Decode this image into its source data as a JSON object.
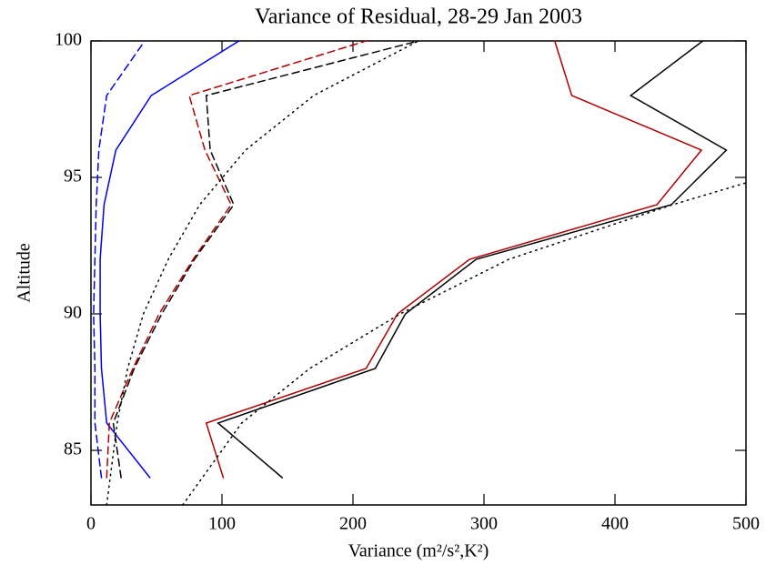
{
  "chart_data": {
    "type": "line",
    "title": "Variance of Residual, 28-29 Jan 2003",
    "xlabel": "Variance (m²/s²,K²)",
    "ylabel": "Altitude",
    "xlim": [
      0,
      500
    ],
    "xticks": [
      0,
      100,
      200,
      300,
      400,
      500
    ],
    "ylim": [
      83,
      100
    ],
    "yticks": [
      85,
      90,
      95,
      100
    ],
    "series": [
      {
        "color": "#0000ee",
        "dash": "none",
        "x": [
          45,
          12,
          8,
          7,
          7,
          10,
          19,
          46,
          113
        ],
        "y": [
          84,
          86,
          88,
          90,
          92,
          94,
          96,
          98,
          100
        ]
      },
      {
        "color": "#0000ee",
        "dash": "8,5",
        "x": [
          8,
          3,
          3,
          2,
          3,
          4,
          6,
          12,
          41
        ],
        "y": [
          84,
          86,
          88,
          90,
          92,
          94,
          96,
          98,
          100
        ]
      },
      {
        "color": "#000000",
        "dash": "none",
        "x": [
          146,
          97,
          217,
          240,
          294,
          443,
          485,
          412,
          467
        ],
        "y": [
          84,
          86,
          88,
          90,
          92,
          94,
          96,
          98,
          100
        ]
      },
      {
        "color": "#b00000",
        "dash": "none",
        "x": [
          101,
          88,
          210,
          234,
          289,
          432,
          466,
          367,
          354
        ],
        "y": [
          84,
          86,
          88,
          90,
          92,
          94,
          96,
          98,
          100
        ]
      },
      {
        "color": "#000000",
        "dash": "8,5",
        "x": [
          23,
          17,
          33,
          54,
          79,
          109,
          91,
          88,
          250
        ],
        "y": [
          84,
          86,
          88,
          90,
          92,
          94,
          96,
          98,
          100
        ]
      },
      {
        "color": "#b00000",
        "dash": "8,5",
        "x": [
          12,
          14,
          32,
          52,
          78,
          107,
          87,
          75,
          210
        ],
        "y": [
          84,
          86,
          88,
          90,
          92,
          94,
          96,
          98,
          100
        ]
      },
      {
        "color": "#000000",
        "dash": "1.5,5",
        "x": [
          12,
          20,
          28,
          40,
          59,
          83,
          118,
          170,
          250
        ],
        "y": [
          83,
          86,
          88,
          90,
          92,
          94,
          96,
          98,
          100
        ]
      },
      {
        "color": "#000000",
        "dash": "1.5,5",
        "x": [
          70,
          115,
          167,
          236,
          319,
          444,
          500
        ],
        "y": [
          83,
          86,
          88,
          90,
          92,
          94,
          94.8
        ]
      }
    ]
  }
}
